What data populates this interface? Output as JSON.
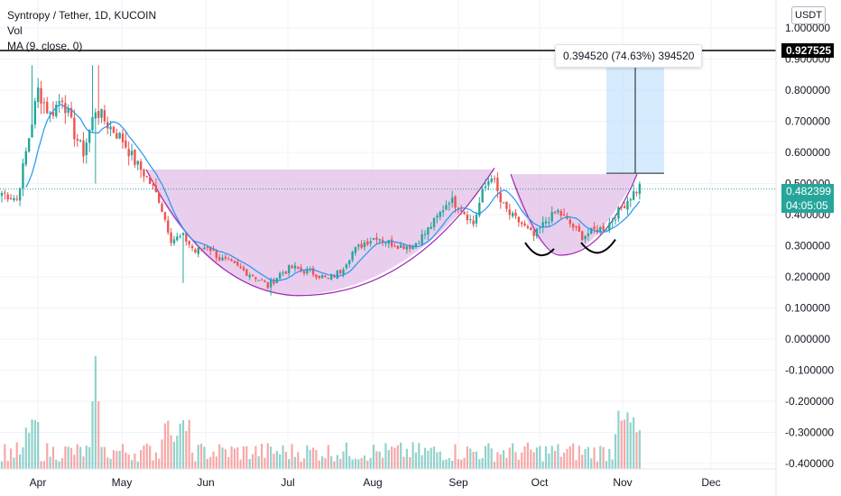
{
  "legend": {
    "symbol": "Syntropy / Tether, 1D, KUCOIN",
    "vol": "Vol",
    "ma": "MA (9, close, 0)"
  },
  "currency_button": "USDT",
  "measure_label": "0.394520 (74.63%) 394520",
  "horizontal_line_tag": "0.927525",
  "last_price_tag": {
    "price": "0.482399",
    "countdown": "04:05:05"
  },
  "colors": {
    "up": "#26a69a",
    "down": "#ef5350",
    "ma_line": "#2196f3",
    "cup_fill": "#e1bee7",
    "cup_edge": "#9c27b0",
    "measure_box": "#bbdefb",
    "hline": "#000000"
  },
  "chart_data": {
    "type": "candlestick",
    "title": "Syntropy / Tether, 1D, KUCOIN",
    "price_axis": {
      "ylim": [
        -0.42,
        1.06
      ],
      "ticks": [
        "1.000000",
        "0.900000",
        "0.800000",
        "0.700000",
        "0.600000",
        "0.500000",
        "0.400000",
        "0.300000",
        "0.200000",
        "0.100000",
        "0.000000",
        "-0.100000",
        "-0.200000",
        "-0.300000",
        "-0.400000"
      ]
    },
    "time_axis": {
      "labels": [
        "Apr",
        "May",
        "Jun",
        "Jul",
        "Aug",
        "Sep",
        "Oct",
        "Nov",
        "Dec"
      ]
    },
    "horizontal_line": 0.927525,
    "last_price": 0.482399,
    "measure": {
      "from": 0.533,
      "to": 0.927525,
      "change": "0.394520 (74.63%) 394520"
    },
    "close_path_anchors": [
      [
        0,
        0.47
      ],
      [
        5,
        0.45
      ],
      [
        8,
        0.6
      ],
      [
        12,
        0.8
      ],
      [
        16,
        0.72
      ],
      [
        20,
        0.78
      ],
      [
        24,
        0.66
      ],
      [
        27,
        0.6
      ],
      [
        31,
        0.74
      ],
      [
        35,
        0.69
      ],
      [
        40,
        0.64
      ],
      [
        44,
        0.57
      ],
      [
        48,
        0.52
      ],
      [
        52,
        0.45
      ],
      [
        56,
        0.32
      ],
      [
        60,
        0.33
      ],
      [
        64,
        0.28
      ],
      [
        68,
        0.3
      ],
      [
        72,
        0.26
      ],
      [
        76,
        0.24
      ],
      [
        80,
        0.22
      ],
      [
        84,
        0.2
      ],
      [
        88,
        0.17
      ],
      [
        92,
        0.21
      ],
      [
        96,
        0.23
      ],
      [
        100,
        0.22
      ],
      [
        104,
        0.21
      ],
      [
        108,
        0.19
      ],
      [
        112,
        0.22
      ],
      [
        116,
        0.28
      ],
      [
        120,
        0.31
      ],
      [
        124,
        0.33
      ],
      [
        128,
        0.31
      ],
      [
        132,
        0.3
      ],
      [
        136,
        0.3
      ],
      [
        140,
        0.34
      ],
      [
        144,
        0.39
      ],
      [
        148,
        0.45
      ],
      [
        152,
        0.42
      ],
      [
        156,
        0.37
      ],
      [
        159,
        0.47
      ],
      [
        162,
        0.53
      ],
      [
        165,
        0.44
      ],
      [
        168,
        0.4
      ],
      [
        172,
        0.37
      ],
      [
        176,
        0.33
      ],
      [
        180,
        0.38
      ],
      [
        184,
        0.41
      ],
      [
        188,
        0.37
      ],
      [
        192,
        0.33
      ],
      [
        196,
        0.35
      ],
      [
        200,
        0.36
      ],
      [
        204,
        0.41
      ],
      [
        208,
        0.46
      ],
      [
        211,
        0.49
      ]
    ]
  },
  "notes_visible": []
}
